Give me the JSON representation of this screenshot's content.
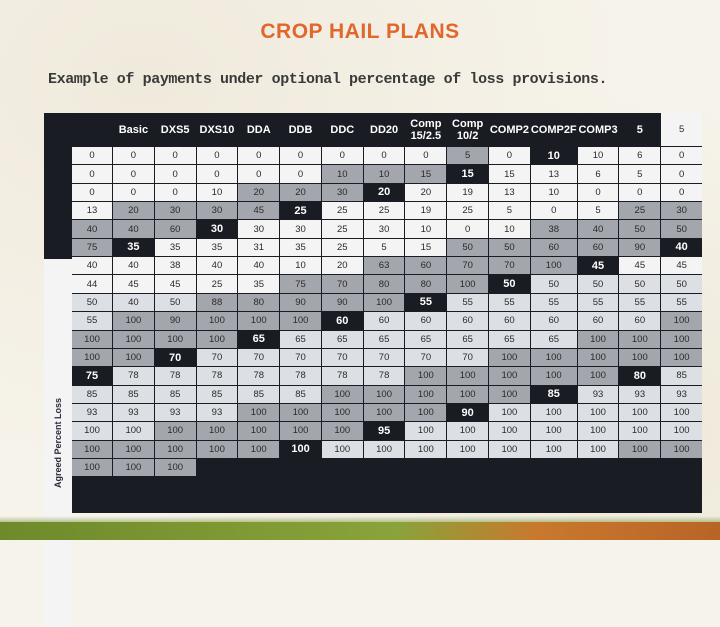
{
  "title": "CROP HAIL PLANS",
  "subtitle": "Example of payments under optional percentage of loss provisions.",
  "side_label": "Agreed Percent Loss",
  "columns": [
    "Basic",
    "DXS5",
    "DXS10",
    "DDA",
    "DDB",
    "DDC",
    "DD20",
    "Comp 15/2.5",
    "Comp 10/2",
    "COMP2",
    "COMP2F",
    "COMP3"
  ],
  "rows": [
    {
      "loss": "5",
      "values": [
        "5",
        "0",
        "0",
        "0",
        "0",
        "0",
        "0",
        "0",
        "0",
        "0",
        "5",
        "0"
      ]
    },
    {
      "loss": "10",
      "values": [
        "10",
        "6",
        "0",
        "0",
        "0",
        "0",
        "0",
        "0",
        "0",
        "10",
        "10",
        "15"
      ]
    },
    {
      "loss": "15",
      "values": [
        "15",
        "13",
        "6",
        "5",
        "0",
        "0",
        "0",
        "0",
        "10",
        "20",
        "20",
        "30"
      ]
    },
    {
      "loss": "20",
      "values": [
        "20",
        "19",
        "13",
        "10",
        "0",
        "0",
        "0",
        "13",
        "20",
        "30",
        "30",
        "45"
      ]
    },
    {
      "loss": "25",
      "values": [
        "25",
        "25",
        "19",
        "25",
        "5",
        "0",
        "5",
        "25",
        "30",
        "40",
        "40",
        "60"
      ]
    },
    {
      "loss": "30",
      "values": [
        "30",
        "30",
        "25",
        "30",
        "10",
        "0",
        "10",
        "38",
        "40",
        "50",
        "50",
        "75"
      ]
    },
    {
      "loss": "35",
      "values": [
        "35",
        "35",
        "31",
        "35",
        "25",
        "5",
        "15",
        "50",
        "50",
        "60",
        "60",
        "90"
      ]
    },
    {
      "loss": "40",
      "values": [
        "40",
        "40",
        "38",
        "40",
        "40",
        "10",
        "20",
        "63",
        "60",
        "70",
        "70",
        "100"
      ]
    },
    {
      "loss": "45",
      "values": [
        "45",
        "45",
        "44",
        "45",
        "45",
        "25",
        "35",
        "75",
        "70",
        "80",
        "80",
        "100"
      ]
    },
    {
      "loss": "50",
      "values": [
        "50",
        "50",
        "50",
        "50",
        "50",
        "40",
        "50",
        "88",
        "80",
        "90",
        "90",
        "100"
      ]
    },
    {
      "loss": "55",
      "values": [
        "55",
        "55",
        "55",
        "55",
        "55",
        "55",
        "55",
        "100",
        "90",
        "100",
        "100",
        "100"
      ]
    },
    {
      "loss": "60",
      "values": [
        "60",
        "60",
        "60",
        "60",
        "60",
        "60",
        "60",
        "100",
        "100",
        "100",
        "100",
        "100"
      ]
    },
    {
      "loss": "65",
      "values": [
        "65",
        "65",
        "65",
        "65",
        "65",
        "65",
        "65",
        "100",
        "100",
        "100",
        "100",
        "100"
      ]
    },
    {
      "loss": "70",
      "values": [
        "70",
        "70",
        "70",
        "70",
        "70",
        "70",
        "70",
        "100",
        "100",
        "100",
        "100",
        "100"
      ]
    },
    {
      "loss": "75",
      "values": [
        "78",
        "78",
        "78",
        "78",
        "78",
        "78",
        "78",
        "100",
        "100",
        "100",
        "100",
        "100"
      ]
    },
    {
      "loss": "80",
      "values": [
        "85",
        "85",
        "85",
        "85",
        "85",
        "85",
        "85",
        "100",
        "100",
        "100",
        "100",
        "100"
      ]
    },
    {
      "loss": "85",
      "values": [
        "93",
        "93",
        "93",
        "93",
        "93",
        "93",
        "93",
        "100",
        "100",
        "100",
        "100",
        "100"
      ]
    },
    {
      "loss": "90",
      "values": [
        "100",
        "100",
        "100",
        "100",
        "100",
        "100",
        "100",
        "100",
        "100",
        "100",
        "100",
        "100"
      ]
    },
    {
      "loss": "95",
      "values": [
        "100",
        "100",
        "100",
        "100",
        "100",
        "100",
        "100",
        "100",
        "100",
        "100",
        "100",
        "100"
      ]
    },
    {
      "loss": "100",
      "values": [
        "100",
        "100",
        "100",
        "100",
        "100",
        "100",
        "100",
        "100",
        "100",
        "100",
        "100",
        "100"
      ]
    }
  ],
  "colors": {
    "title": "#e0672d",
    "header_bg": "#1a1c24",
    "cell_light": "#f4f4f4",
    "cell_gray": "#a3a6ad",
    "cell_lightgray": "#dcdfe4"
  }
}
